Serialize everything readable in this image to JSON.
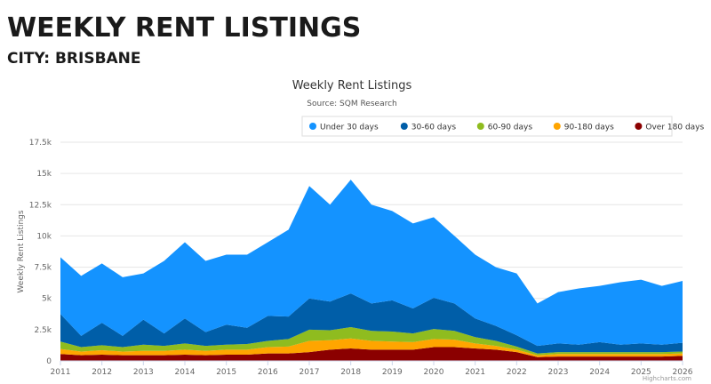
{
  "page": {
    "heading": "WEEKLY RENT LISTINGS",
    "subheading": "CITY: BRISBANE",
    "credit": "Highcharts.com"
  },
  "chart_data": {
    "type": "area",
    "stacked": true,
    "title": "Weekly Rent Listings",
    "subtitle": "Source: SQM Research",
    "xlabel": "",
    "ylabel": "Weekly Rent Listings",
    "xlim": [
      2011,
      2026
    ],
    "ylim": [
      0,
      17500
    ],
    "x_ticks": [
      "2011",
      "2012",
      "2013",
      "2014",
      "2015",
      "2016",
      "2017",
      "2018",
      "2019",
      "2020",
      "2021",
      "2022",
      "2023",
      "2024",
      "2025",
      "2026"
    ],
    "y_ticks": [
      "0",
      "2.5k",
      "5k",
      "7.5k",
      "10k",
      "12.5k",
      "15k",
      "17.5k"
    ],
    "grid": true,
    "legend_position": "top-right",
    "x": [
      2011.0,
      2011.5,
      2012.0,
      2012.5,
      2013.0,
      2013.5,
      2014.0,
      2014.5,
      2015.0,
      2015.5,
      2016.0,
      2016.5,
      2017.0,
      2017.5,
      2018.0,
      2018.5,
      2019.0,
      2019.5,
      2020.0,
      2020.5,
      2021.0,
      2021.5,
      2022.0,
      2022.5,
      2023.0,
      2023.5,
      2024.0,
      2024.5,
      2025.0,
      2025.5,
      2026.0
    ],
    "series": [
      {
        "name": "Over 180 days",
        "color": "#8b0000",
        "values": [
          550,
          450,
          500,
          450,
          450,
          450,
          500,
          450,
          500,
          500,
          600,
          600,
          700,
          900,
          1000,
          900,
          900,
          900,
          1100,
          1100,
          1000,
          900,
          700,
          300,
          350,
          350,
          350,
          350,
          350,
          350,
          400
        ]
      },
      {
        "name": "90-180 days",
        "color": "#ffa500",
        "values": [
          400,
          300,
          350,
          300,
          350,
          350,
          400,
          350,
          400,
          400,
          500,
          550,
          900,
          750,
          800,
          700,
          650,
          600,
          650,
          600,
          400,
          300,
          200,
          150,
          200,
          200,
          200,
          200,
          200,
          200,
          200
        ]
      },
      {
        "name": "60-90 days",
        "color": "#8fbc1f",
        "values": [
          600,
          350,
          400,
          350,
          500,
          400,
          500,
          400,
          400,
          450,
          500,
          600,
          900,
          800,
          900,
          800,
          800,
          700,
          800,
          700,
          500,
          400,
          250,
          150,
          150,
          150,
          150,
          150,
          150,
          150,
          150
        ]
      },
      {
        "name": "30-60 days",
        "color": "#005ea8",
        "values": [
          2200,
          900,
          1800,
          900,
          2000,
          1000,
          2000,
          1100,
          1600,
          1300,
          2000,
          1800,
          2500,
          2300,
          2700,
          2200,
          2500,
          2000,
          2500,
          2200,
          1500,
          1200,
          900,
          600,
          700,
          600,
          800,
          600,
          700,
          600,
          700
        ]
      },
      {
        "name": "Under 30 days",
        "color": "#1493ff",
        "values": [
          4550,
          4800,
          4750,
          4700,
          3700,
          5800,
          6100,
          5700,
          5600,
          5850,
          5900,
          6950,
          9000,
          7750,
          9100,
          7900,
          7150,
          6800,
          6450,
          5400,
          5100,
          4700,
          4950,
          3400,
          4100,
          4500,
          4500,
          5000,
          5100,
          4700,
          4950
        ]
      }
    ],
    "legend_order": [
      "Under 30 days",
      "30-60 days",
      "60-90 days",
      "90-180 days",
      "Over 180 days"
    ]
  }
}
